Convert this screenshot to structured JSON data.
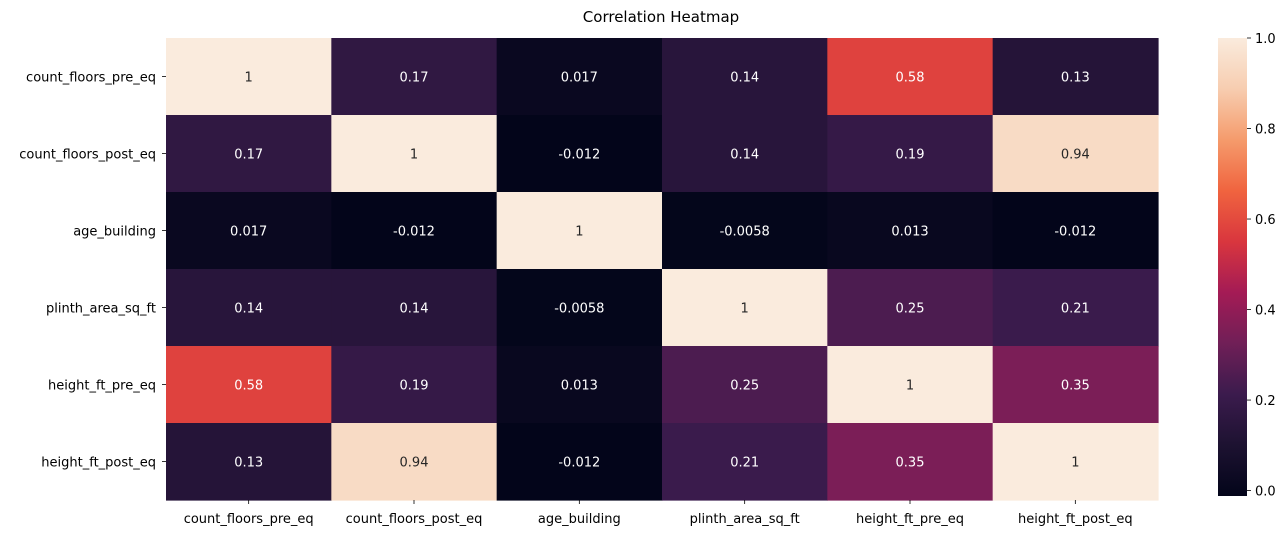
{
  "chart_data": {
    "type": "heatmap",
    "title": "Correlation Heatmap",
    "xlabel": "",
    "ylabel": "",
    "x_categories": [
      "count_floors_pre_eq",
      "count_floors_post_eq",
      "age_building",
      "plinth_area_sq_ft",
      "height_ft_pre_eq",
      "height_ft_post_eq"
    ],
    "y_categories": [
      "count_floors_pre_eq",
      "count_floors_post_eq",
      "age_building",
      "plinth_area_sq_ft",
      "height_ft_pre_eq",
      "height_ft_post_eq"
    ],
    "values": [
      [
        1,
        0.17,
        0.017,
        0.14,
        0.58,
        0.13
      ],
      [
        0.17,
        1,
        -0.012,
        0.14,
        0.19,
        0.94
      ],
      [
        0.017,
        -0.012,
        1,
        -0.0058,
        0.013,
        -0.012
      ],
      [
        0.14,
        0.14,
        -0.0058,
        1,
        0.25,
        0.21
      ],
      [
        0.58,
        0.19,
        0.013,
        0.25,
        1,
        0.35
      ],
      [
        0.13,
        0.94,
        -0.012,
        0.21,
        0.35,
        1
      ]
    ],
    "annotations": [
      [
        "1",
        "0.17",
        "0.017",
        "0.14",
        "0.58",
        "0.13"
      ],
      [
        "0.17",
        "1",
        "-0.012",
        "0.14",
        "0.19",
        "0.94"
      ],
      [
        "0.017",
        "-0.012",
        "1",
        "-0.0058",
        "0.013",
        "-0.012"
      ],
      [
        "0.14",
        "0.14",
        "-0.0058",
        "1",
        "0.25",
        "0.21"
      ],
      [
        "0.58",
        "0.19",
        "0.013",
        "0.25",
        "1",
        "0.35"
      ],
      [
        "0.13",
        "0.94",
        "-0.012",
        "0.21",
        "0.35",
        "1"
      ]
    ],
    "vmin": -0.012,
    "vmax": 1.0,
    "colorbar": {
      "ticks": [
        0.0,
        0.2,
        0.4,
        0.6,
        0.8,
        1.0
      ],
      "tick_labels": [
        "0.0",
        "0.2",
        "0.4",
        "0.6",
        "0.8",
        "1.0"
      ]
    },
    "colormap": "rocket",
    "colormap_stops": [
      "#03051a",
      "#1d1231",
      "#3b1b4d",
      "#701f57",
      "#a41b55",
      "#d9363e",
      "#f0643f",
      "#f59b6c",
      "#f7cdb0",
      "#faebdd"
    ]
  }
}
